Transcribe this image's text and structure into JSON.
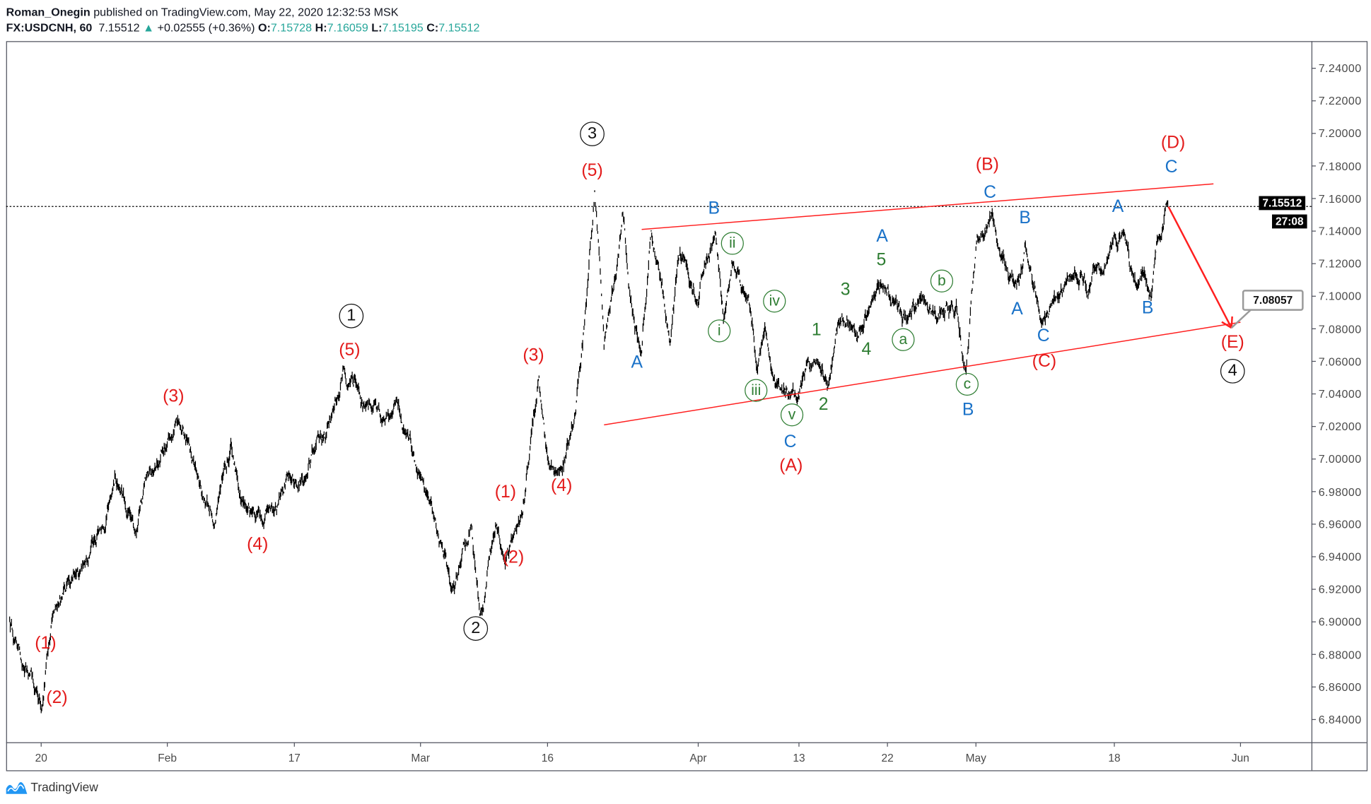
{
  "header": {
    "author": "Roman_Onegin",
    "published": "published on TradingView.com, May 22, 2020 12:32:53 MSK",
    "symbol": "FX:USDCNH, 60",
    "last": "7.15512",
    "change": "+0.02555 (+0.36%)",
    "o_label": "O:",
    "o": "7.15728",
    "h_label": "H:",
    "h": "7.16059",
    "l_label": "L:",
    "l": "7.15195",
    "c_label": "C:",
    "c": "7.15512"
  },
  "colors": {
    "up": "#26a69a",
    "price": "#000000",
    "trendline": "#ff1f1f",
    "wave_major": "#e31b1b",
    "wave_minor": "#1a72c8",
    "wave_sub": "#2e7d32"
  },
  "price_badge": "7.15512",
  "countdown": "27:08",
  "callout": "7.08057",
  "footer": {
    "logo_text": "TradingView",
    "logo_icon": "tradingview-logo-icon"
  },
  "chart_data": {
    "type": "line",
    "style": "ohlc-bars",
    "timeframe": "60",
    "grid": false,
    "ylim": [
      6.83,
      7.25
    ],
    "y_ticks": [
      "7.24000",
      "7.22000",
      "7.20000",
      "7.18000",
      "7.16000",
      "7.14000",
      "7.12000",
      "7.10000",
      "7.08000",
      "7.06000",
      "7.04000",
      "7.02000",
      "7.00000",
      "6.98000",
      "6.96000",
      "6.94000",
      "6.92000",
      "6.90000",
      "6.88000",
      "6.86000",
      "6.84000"
    ],
    "x_ticks": [
      {
        "label": "20",
        "date": "2020-01-20"
      },
      {
        "label": "Feb",
        "date": "2020-02-01"
      },
      {
        "label": "17",
        "date": "2020-02-17"
      },
      {
        "label": "Mar",
        "date": "2020-03-01"
      },
      {
        "label": "16",
        "date": "2020-03-16"
      },
      {
        "label": "Apr",
        "date": "2020-04-01"
      },
      {
        "label": "13",
        "date": "2020-04-13"
      },
      {
        "label": "22",
        "date": "2020-04-22"
      },
      {
        "label": "May",
        "date": "2020-05-01"
      },
      {
        "label": "18",
        "date": "2020-05-18"
      },
      {
        "label": "Jun",
        "date": "2020-06-01"
      }
    ],
    "current_price": 7.15512,
    "swings": [
      [
        "2020-01-17",
        6.9
      ],
      [
        "2020-01-19",
        6.87
      ],
      [
        "2020-01-20",
        6.845
      ],
      [
        "2020-01-21",
        6.9
      ],
      [
        "2020-01-24",
        6.935
      ],
      [
        "2020-01-26",
        6.955
      ],
      [
        "2020-01-27",
        6.99
      ],
      [
        "2020-01-29",
        6.955
      ],
      [
        "2020-01-30",
        6.99
      ],
      [
        "2020-02-02",
        7.022
      ],
      [
        "2020-02-05",
        6.985
      ],
      [
        "2020-02-07",
        6.96
      ],
      [
        "2020-02-09",
        7.01
      ],
      [
        "2020-02-10",
        6.98
      ],
      [
        "2020-02-13",
        6.96
      ],
      [
        "2020-02-16",
        6.99
      ],
      [
        "2020-02-17",
        6.985
      ],
      [
        "2020-02-19",
        7.005
      ],
      [
        "2020-02-21",
        7.03
      ],
      [
        "2020-02-22",
        7.055
      ],
      [
        "2020-02-25",
        7.03
      ],
      [
        "2020-02-28",
        7.025
      ],
      [
        "2020-03-01",
        6.99
      ],
      [
        "2020-03-04",
        6.94
      ],
      [
        "2020-03-05",
        6.92
      ],
      [
        "2020-03-07",
        6.96
      ],
      [
        "2020-03-08",
        6.905
      ],
      [
        "2020-03-10",
        6.96
      ],
      [
        "2020-03-11",
        6.935
      ],
      [
        "2020-03-13",
        6.965
      ],
      [
        "2020-03-15",
        7.05
      ],
      [
        "2020-03-16",
        7.0
      ],
      [
        "2020-03-17",
        6.99
      ],
      [
        "2020-03-19",
        7.03
      ],
      [
        "2020-03-20",
        7.09
      ],
      [
        "2020-03-21",
        7.165
      ],
      [
        "2020-03-22",
        7.07
      ],
      [
        "2020-03-24",
        7.15
      ],
      [
        "2020-03-25",
        7.09
      ],
      [
        "2020-03-26",
        7.065
      ],
      [
        "2020-03-27",
        7.14
      ],
      [
        "2020-03-29",
        7.07
      ],
      [
        "2020-03-30",
        7.125
      ],
      [
        "2020-04-01",
        7.095
      ],
      [
        "2020-04-03",
        7.14
      ],
      [
        "2020-04-04",
        7.085
      ],
      [
        "2020-04-05",
        7.12
      ],
      [
        "2020-04-07",
        7.1
      ],
      [
        "2020-04-08",
        7.055
      ],
      [
        "2020-04-09",
        7.08
      ],
      [
        "2020-04-10",
        7.05
      ],
      [
        "2020-04-12",
        7.04
      ],
      [
        "2020-04-14",
        7.06
      ],
      [
        "2020-04-16",
        7.045
      ],
      [
        "2020-04-17",
        7.085
      ],
      [
        "2020-04-19",
        7.075
      ],
      [
        "2020-04-22",
        7.105
      ],
      [
        "2020-04-23",
        7.095
      ],
      [
        "2020-04-24",
        7.085
      ],
      [
        "2020-04-25",
        7.095
      ],
      [
        "2020-04-27",
        7.085
      ],
      [
        "2020-04-29",
        7.095
      ],
      [
        "2020-04-30",
        7.055
      ],
      [
        "2020-05-01",
        7.13
      ],
      [
        "2020-05-03",
        7.152
      ],
      [
        "2020-05-04",
        7.125
      ],
      [
        "2020-05-06",
        7.105
      ],
      [
        "2020-05-07",
        7.13
      ],
      [
        "2020-05-09",
        7.085
      ],
      [
        "2020-05-11",
        7.1
      ],
      [
        "2020-05-15",
        7.105
      ],
      [
        "2020-05-19",
        7.14
      ],
      [
        "2020-05-20",
        7.115
      ],
      [
        "2020-05-22",
        7.1
      ],
      [
        "2020-05-24",
        7.16
      ]
    ],
    "trendlines": [
      {
        "name": "upper",
        "from": [
          "2020-03-26",
          7.141
        ],
        "to": [
          "2020-05-29",
          7.169
        ]
      },
      {
        "name": "lower",
        "from": [
          "2020-03-22",
          7.021
        ],
        "to": [
          "2020-06-01",
          7.084
        ]
      }
    ],
    "projection": {
      "from": [
        "2020-05-24",
        7.155
      ],
      "to": [
        "2020-05-31",
        7.08057
      ]
    },
    "annotations": [
      {
        "text": "(1)",
        "color": "red"
      },
      {
        "text": "(2)",
        "color": "red"
      },
      {
        "text": "(3)",
        "color": "red"
      },
      {
        "text": "(4)",
        "color": "red"
      },
      {
        "text": "(5)",
        "color": "red"
      },
      {
        "text": "(1)",
        "color": "red"
      },
      {
        "text": "(2)",
        "color": "red"
      },
      {
        "text": "(3)",
        "color": "red"
      },
      {
        "text": "(4)",
        "color": "red"
      },
      {
        "text": "(5)",
        "color": "red"
      },
      {
        "text": "(A)",
        "color": "red"
      },
      {
        "text": "(B)",
        "color": "red"
      },
      {
        "text": "(C)",
        "color": "red"
      },
      {
        "text": "(D)",
        "color": "red"
      },
      {
        "text": "(E)",
        "color": "red"
      },
      {
        "text": "1",
        "color": "black",
        "circled": true
      },
      {
        "text": "2",
        "color": "black",
        "circled": true
      },
      {
        "text": "3",
        "color": "black",
        "circled": true
      },
      {
        "text": "4",
        "color": "black",
        "circled": true
      },
      {
        "text": "A",
        "color": "blue"
      },
      {
        "text": "B",
        "color": "blue"
      },
      {
        "text": "C",
        "color": "blue"
      },
      {
        "text": "A",
        "color": "blue"
      },
      {
        "text": "B",
        "color": "blue"
      },
      {
        "text": "C",
        "color": "blue"
      },
      {
        "text": "B",
        "color": "blue"
      },
      {
        "text": "A",
        "color": "blue"
      },
      {
        "text": "C",
        "color": "blue"
      },
      {
        "text": "A",
        "color": "blue"
      },
      {
        "text": "B",
        "color": "blue"
      },
      {
        "text": "C",
        "color": "blue"
      },
      {
        "text": "5",
        "color": "green"
      },
      {
        "text": "3",
        "color": "green"
      },
      {
        "text": "1",
        "color": "green"
      },
      {
        "text": "4",
        "color": "green"
      },
      {
        "text": "2",
        "color": "green"
      },
      {
        "text": "ii",
        "color": "green",
        "circled": true
      },
      {
        "text": "i",
        "color": "green",
        "circled": true
      },
      {
        "text": "iv",
        "color": "green",
        "circled": true
      },
      {
        "text": "iii",
        "color": "green",
        "circled": true
      },
      {
        "text": "v",
        "color": "green",
        "circled": true
      },
      {
        "text": "a",
        "color": "green",
        "circled": true
      },
      {
        "text": "b",
        "color": "green",
        "circled": true
      },
      {
        "text": "c",
        "color": "green",
        "circled": true
      }
    ]
  }
}
